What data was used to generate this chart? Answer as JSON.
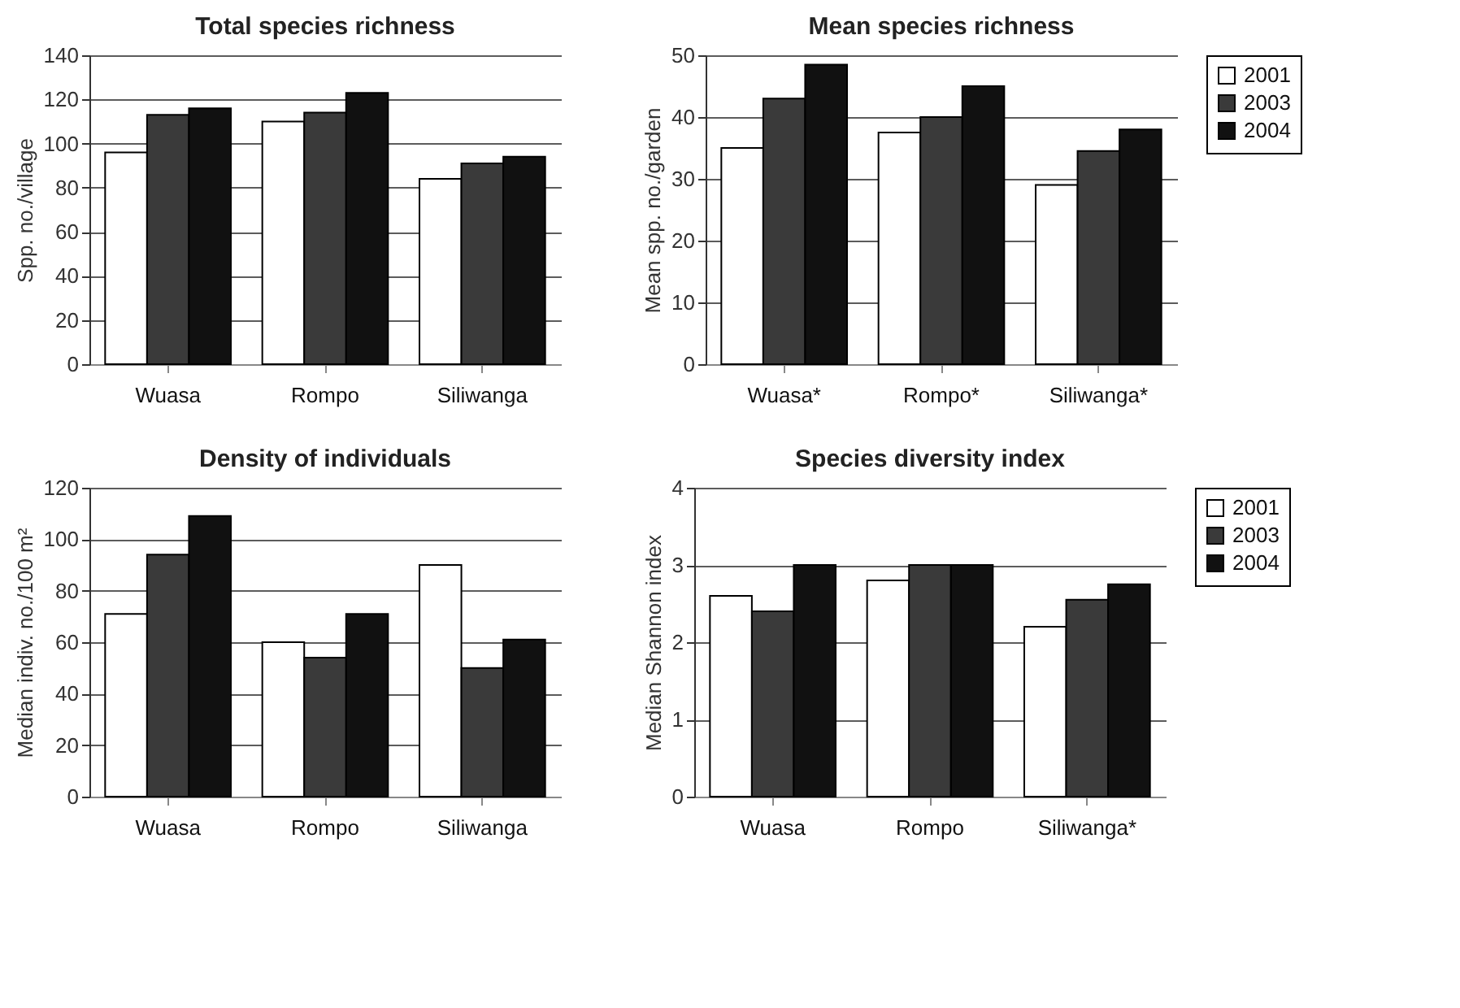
{
  "chart_data": [
    {
      "type": "bar",
      "title": "Total species richness",
      "ylabel": "Spp. no./village",
      "categories": [
        "Wuasa",
        "Rompo",
        "Siliwanga"
      ],
      "ylim": [
        0,
        140
      ],
      "yticks": [
        0,
        20,
        40,
        60,
        80,
        100,
        120,
        140
      ],
      "grid": "y",
      "legend": false,
      "series": [
        {
          "color": "#ffffff",
          "values": [
            96,
            110,
            84
          ]
        },
        {
          "color": "#3a3a3a",
          "values": [
            113,
            114,
            91
          ]
        },
        {
          "color": "#111111",
          "values": [
            116,
            123,
            94
          ]
        }
      ]
    },
    {
      "type": "bar",
      "title": "Mean species richness",
      "ylabel": "Mean spp. no./garden",
      "categories": [
        "Wuasa*",
        "Rompo*",
        "Siliwanga*"
      ],
      "ylim": [
        0,
        50
      ],
      "yticks": [
        0,
        10,
        20,
        30,
        40,
        50
      ],
      "grid": "y",
      "legend": "right",
      "series": [
        {
          "name": "2001",
          "color": "#ffffff",
          "values": [
            35,
            37.5,
            29
          ]
        },
        {
          "name": "2003",
          "color": "#3a3a3a",
          "values": [
            43,
            40,
            34.5
          ]
        },
        {
          "name": "2004",
          "color": "#111111",
          "values": [
            48.5,
            45,
            38
          ]
        }
      ]
    },
    {
      "type": "bar",
      "title": "Density of individuals",
      "ylabel": "Median indiv. no./100 m²",
      "categories": [
        "Wuasa",
        "Rompo",
        "Siliwanga"
      ],
      "ylim": [
        0,
        120
      ],
      "yticks": [
        0,
        20,
        40,
        60,
        80,
        100,
        120
      ],
      "grid": "y",
      "legend": false,
      "series": [
        {
          "color": "#ffffff",
          "values": [
            71,
            60,
            90
          ]
        },
        {
          "color": "#3a3a3a",
          "values": [
            94,
            54,
            50
          ]
        },
        {
          "color": "#111111",
          "values": [
            109,
            71,
            61
          ]
        }
      ]
    },
    {
      "type": "bar",
      "title": "Species diversity index",
      "ylabel": "Median Shannon index",
      "categories": [
        "Wuasa",
        "Rompo",
        "Siliwanga*"
      ],
      "ylim": [
        0,
        4
      ],
      "yticks": [
        0,
        1,
        2,
        3,
        4
      ],
      "grid": "y",
      "legend": "right",
      "series": [
        {
          "name": "2001",
          "color": "#ffffff",
          "values": [
            2.6,
            2.8,
            2.2
          ]
        },
        {
          "name": "2003",
          "color": "#3a3a3a",
          "values": [
            2.4,
            3.0,
            2.55
          ]
        },
        {
          "name": "2004",
          "color": "#111111",
          "values": [
            3.0,
            3.0,
            2.75
          ]
        }
      ]
    }
  ]
}
